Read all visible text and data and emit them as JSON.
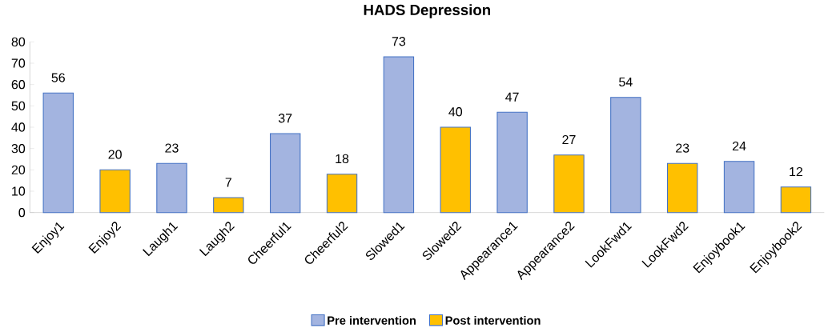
{
  "chart_data": {
    "type": "bar",
    "title": "HADS Depression",
    "categories": [
      "Enjoy1",
      "Enjoy2",
      "Laugh1",
      "Laugh2",
      "Cheerful1",
      "Cheerful2",
      "Slowed1",
      "Slowed2",
      "Appearance1",
      "Appearance2",
      "LookFwd1",
      "LookFwd2",
      "Enjoybook1",
      "Enjoybook2"
    ],
    "series": [
      {
        "name": "Pre intervention",
        "color": "#a3b4e0",
        "values": [
          56,
          null,
          23,
          null,
          37,
          null,
          73,
          null,
          47,
          null,
          54,
          null,
          24,
          null
        ]
      },
      {
        "name": "Post intervention",
        "color": "#ffc000",
        "values": [
          null,
          20,
          null,
          7,
          null,
          18,
          null,
          40,
          null,
          27,
          null,
          23,
          null,
          12
        ]
      }
    ],
    "ylim": [
      0,
      80
    ],
    "yticks": [
      0,
      10,
      20,
      30,
      40,
      50,
      60,
      70,
      80
    ],
    "data_labels": true,
    "grid": false,
    "legend": "bottom"
  }
}
